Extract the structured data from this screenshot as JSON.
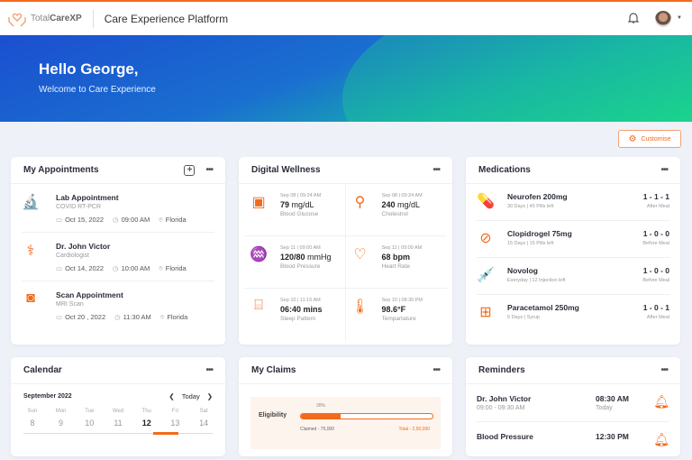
{
  "header": {
    "brand_light": "Total",
    "brand_bold": "CareXP",
    "title": "Care Experience Platform"
  },
  "banner": {
    "greeting": "Hello George,",
    "subtitle": "Welcome to Care Experience"
  },
  "customise_label": "Customise",
  "appointments": {
    "title": "My Appointments",
    "items": [
      {
        "title": "Lab Appointment",
        "sub": "COVID RT-PCR",
        "date": "Oct 15, 2022",
        "time": "09:00 AM",
        "place": "Florida",
        "icon": "microscope-icon"
      },
      {
        "title": "Dr. John Victor",
        "sub": "Cardiologist",
        "date": "Oct 14, 2022",
        "time": "10:00 AM",
        "place": "Florida",
        "icon": "stethoscope-icon"
      },
      {
        "title": "Scan Appointment",
        "sub": "MRI Scan",
        "date": "Oct 20 , 2022",
        "time": "11:30 AM",
        "place": "Florida",
        "icon": "mri-scanner-icon"
      }
    ]
  },
  "wellness": {
    "title": "Digital Wellness",
    "items": [
      {
        "date": "Sep 08 | 09:24 AM",
        "value": "79",
        "unit": "mg/dL",
        "label": "Blood Glucose",
        "icon": "glucometer-icon"
      },
      {
        "date": "Sep 08 | 09:24 AM",
        "value": "240",
        "unit": "mg/dL",
        "label": "Cholestrol",
        "icon": "drumstick-icon"
      },
      {
        "date": "Sep 11 | 09:00 AM",
        "value": "120/80",
        "unit": "mmHg",
        "label": "Blood Pressure",
        "icon": "blood-pressure-icon"
      },
      {
        "date": "Sep 11 | 09:00 AM",
        "value": "68 bpm",
        "unit": "",
        "label": "Heart Rate",
        "icon": "heart-rate-icon"
      },
      {
        "date": "Sep 10 | 11:15 AM",
        "value": "06:40 mins",
        "unit": "",
        "label": "Sleep Pattern",
        "icon": "bed-icon"
      },
      {
        "date": "Sep 10 | 08:30 PM",
        "value": "98.6°F",
        "unit": "",
        "label": "Tempartature",
        "icon": "thermometer-icon"
      }
    ]
  },
  "medications": {
    "title": "Medications",
    "items": [
      {
        "name": "Neurofen 200mg",
        "sub": "30 Days | 45 Pills left",
        "dose": "1 - 1 - 1",
        "when": "After Meal",
        "icon": "capsule-icon"
      },
      {
        "name": "Clopidrogel 75mg",
        "sub": "15 Days | 15 Pills left",
        "dose": "1 - 0 - 0",
        "when": "Before Meal",
        "icon": "pill-icon"
      },
      {
        "name": "Novolog",
        "sub": "Everyday | 12 Injection left",
        "dose": "1 - 0 - 0",
        "when": "Before Meal",
        "icon": "syringe-icon"
      },
      {
        "name": "Paracetamol 250mg",
        "sub": "5 Days | Syrup",
        "dose": "1 - 0 - 1",
        "when": "After Meal",
        "icon": "medicine-bottle-icon"
      }
    ]
  },
  "calendar": {
    "title": "Calendar",
    "month": "September 2022",
    "today": "Today",
    "days": [
      {
        "n": "Sun",
        "d": "8"
      },
      {
        "n": "Mon",
        "d": "9"
      },
      {
        "n": "Tue",
        "d": "10"
      },
      {
        "n": "Wed",
        "d": "11"
      },
      {
        "n": "Thu",
        "d": "12"
      },
      {
        "n": "Fri",
        "d": "13"
      },
      {
        "n": "Sat",
        "d": "14"
      }
    ],
    "selected": "12"
  },
  "claims": {
    "title": "My Claims",
    "label": "Eligibility",
    "percent_label": "30%",
    "percent": 30,
    "claimed": "Claimed - 75,000",
    "total": "Total - 2,50,000"
  },
  "reminders": {
    "title": "Reminders",
    "items": [
      {
        "title": "Dr. John Victor",
        "sub": "09:00 - 09:30 AM",
        "time": "08:30 AM",
        "day": "Today"
      },
      {
        "title": "Blood Pressure",
        "sub": "",
        "time": "12:30 PM",
        "day": ""
      }
    ]
  },
  "colors": {
    "accent": "#f26a1b",
    "banner_start": "#1b4fd0",
    "banner_end": "#1bd58c"
  }
}
